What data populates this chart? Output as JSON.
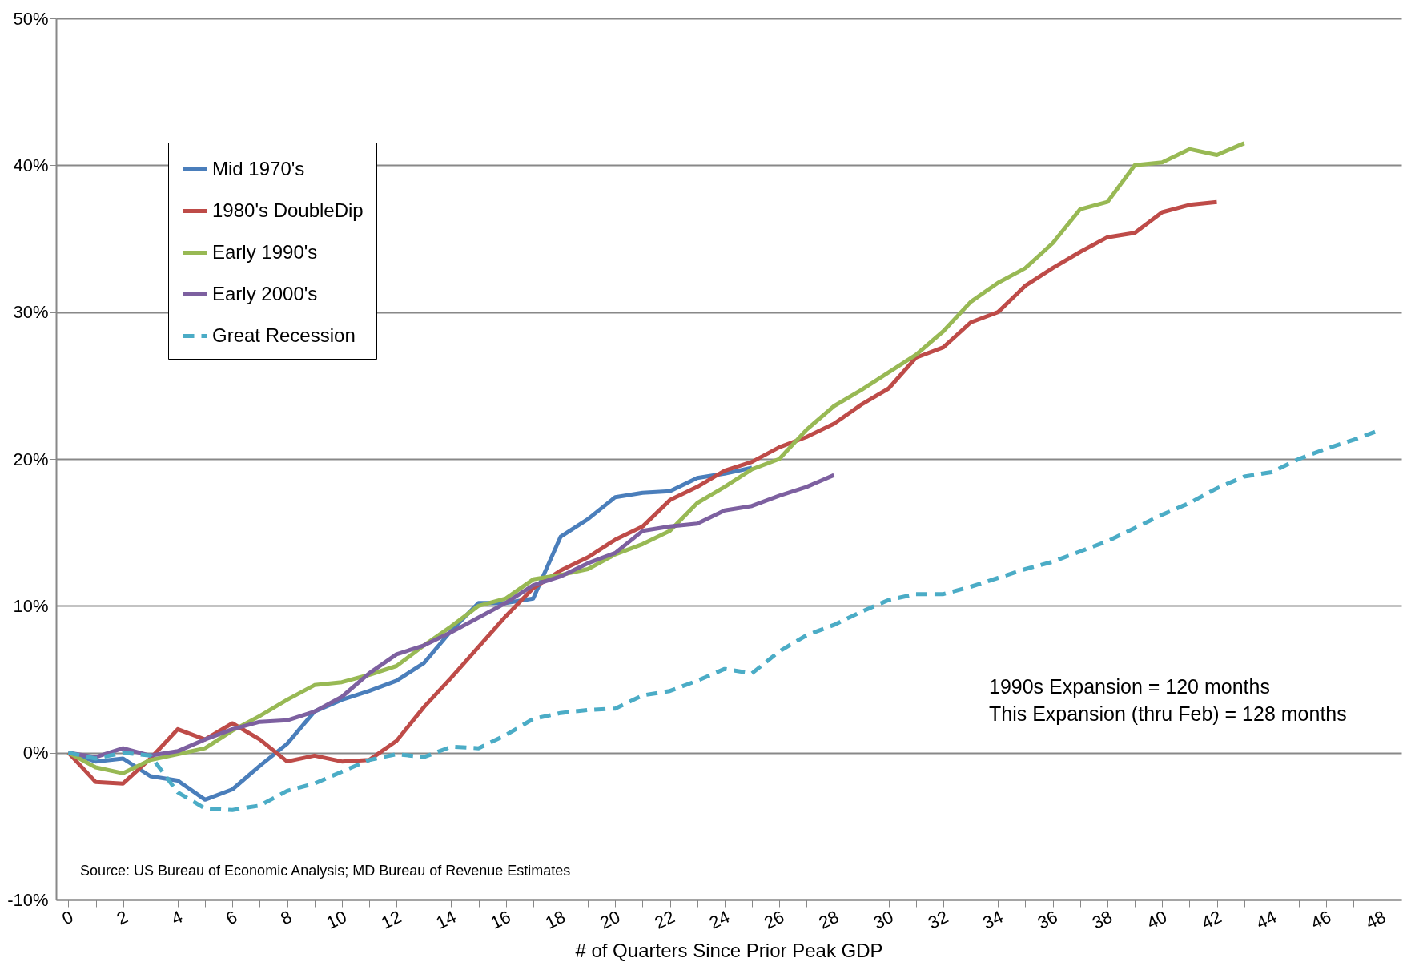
{
  "chart_data": {
    "type": "line",
    "xlabel": "# of Quarters Since Prior Peak GDP",
    "xlim": [
      -0.45,
      48.75
    ],
    "xticks": [
      0,
      {
        "value": 1,
        "label": null
      },
      2,
      {
        "value": 3,
        "label": null
      },
      4,
      {
        "value": 5,
        "label": null
      },
      6,
      {
        "value": 7,
        "label": null
      },
      8,
      {
        "value": 9,
        "label": null
      },
      10,
      {
        "value": 11,
        "label": null
      },
      12,
      {
        "value": 13,
        "label": null
      },
      14,
      {
        "value": 15,
        "label": null
      },
      16,
      {
        "value": 17,
        "label": null
      },
      18,
      {
        "value": 19,
        "label": null
      },
      20,
      {
        "value": 21,
        "label": null
      },
      22,
      {
        "value": 23,
        "label": null
      },
      24,
      {
        "value": 25,
        "label": null
      },
      26,
      {
        "value": 27,
        "label": null
      },
      28,
      {
        "value": 29,
        "label": null
      },
      30,
      {
        "value": 31,
        "label": null
      },
      32,
      {
        "value": 33,
        "label": null
      },
      34,
      {
        "value": 35,
        "label": null
      },
      36,
      {
        "value": 37,
        "label": null
      },
      38,
      {
        "value": 39,
        "label": null
      },
      40,
      {
        "value": 41,
        "label": null
      },
      42,
      {
        "value": 43,
        "label": null
      },
      44,
      {
        "value": 45,
        "label": null
      },
      46,
      {
        "value": 47,
        "label": null
      },
      48
    ],
    "ylim": [
      -10,
      50
    ],
    "yticks": [
      {
        "value": -10,
        "label": "-10%"
      },
      {
        "value": 0,
        "label": "0%"
      },
      {
        "value": 10,
        "label": "10%"
      },
      {
        "value": 20,
        "label": "20%"
      },
      {
        "value": 30,
        "label": "30%"
      },
      {
        "value": 40,
        "label": "40%"
      },
      {
        "value": 50,
        "label": "50%"
      }
    ],
    "grid": "y",
    "legend": "top left",
    "annotations": [
      "1990s Expansion = 120 months",
      "This Expansion (thru Feb) = 128 months",
      "Source: US Bureau of Economic Analysis; MD Bureau of Revenue Estimates"
    ],
    "series": [
      {
        "name": "Mid 1970's",
        "color": "#4a7ebb",
        "line_style": "solid",
        "x": [
          0,
          1,
          2,
          3,
          4,
          5,
          6,
          7,
          8,
          9,
          10,
          11,
          12,
          13,
          14,
          15,
          16,
          17,
          18,
          19,
          20,
          21,
          22,
          23,
          24,
          25
        ],
        "values": [
          0,
          -0.6,
          -0.4,
          -1.6,
          -1.9,
          -3.2,
          -2.5,
          -0.9,
          0.6,
          2.8,
          3.6,
          4.2,
          4.9,
          6.1,
          8.3,
          10.2,
          10.2,
          10.5,
          14.7,
          15.9,
          17.4,
          17.7,
          17.8,
          18.7,
          19.0,
          19.4
        ]
      },
      {
        "name": "1980's DoubleDip",
        "color": "#be4b48",
        "line_style": "solid",
        "x": [
          0,
          1,
          2,
          3,
          4,
          5,
          6,
          7,
          8,
          9,
          10,
          11,
          12,
          13,
          14,
          15,
          16,
          17,
          18,
          19,
          20,
          21,
          22,
          23,
          24,
          25,
          26,
          27,
          28,
          29,
          30,
          31,
          32,
          33,
          34,
          35,
          36,
          37,
          38,
          39,
          40,
          41,
          42
        ],
        "values": [
          0,
          -2.0,
          -2.1,
          -0.4,
          1.6,
          0.9,
          2.0,
          0.9,
          -0.6,
          -0.2,
          -0.6,
          -0.5,
          0.8,
          3.1,
          5.1,
          7.2,
          9.3,
          11.2,
          12.4,
          13.3,
          14.5,
          15.4,
          17.2,
          18.1,
          19.2,
          19.8,
          20.8,
          21.5,
          22.4,
          23.7,
          24.8,
          26.9,
          27.6,
          29.3,
          30.0,
          31.8,
          33.0,
          34.1,
          35.1,
          35.4,
          36.8,
          37.3,
          37.5
        ]
      },
      {
        "name": "Early 1990's",
        "color": "#98b954",
        "line_style": "solid",
        "x": [
          0,
          1,
          2,
          3,
          4,
          5,
          6,
          7,
          8,
          9,
          10,
          11,
          12,
          13,
          14,
          15,
          16,
          17,
          18,
          19,
          20,
          21,
          22,
          23,
          24,
          25,
          26,
          27,
          28,
          29,
          30,
          31,
          32,
          33,
          34,
          35,
          36,
          37,
          38,
          39,
          40,
          41,
          42,
          43
        ],
        "values": [
          0,
          -1.0,
          -1.4,
          -0.5,
          -0.1,
          0.3,
          1.5,
          2.5,
          3.6,
          4.6,
          4.8,
          5.3,
          5.9,
          7.3,
          8.6,
          10.0,
          10.5,
          11.8,
          12.1,
          12.5,
          13.5,
          14.2,
          15.1,
          17.0,
          18.1,
          19.3,
          20.0,
          22.0,
          23.6,
          24.7,
          25.9,
          27.1,
          28.7,
          30.7,
          32.0,
          33.0,
          34.7,
          37.0,
          37.5,
          40.0,
          40.2,
          41.1,
          40.7,
          41.5
        ]
      },
      {
        "name": "Early 2000's",
        "color": "#7d60a0",
        "line_style": "solid",
        "x": [
          0,
          1,
          2,
          3,
          4,
          5,
          6,
          7,
          8,
          9,
          10,
          11,
          12,
          13,
          14,
          15,
          16,
          17,
          18,
          19,
          20,
          21,
          22,
          23,
          24,
          25,
          26,
          27,
          28
        ],
        "values": [
          0,
          -0.3,
          0.3,
          -0.2,
          0.1,
          0.9,
          1.6,
          2.1,
          2.2,
          2.8,
          3.8,
          5.4,
          6.7,
          7.3,
          8.2,
          9.2,
          10.2,
          11.4,
          12.0,
          12.9,
          13.6,
          15.1,
          15.4,
          15.6,
          16.5,
          16.8,
          17.5,
          18.1,
          18.9
        ]
      },
      {
        "name": "Great Recession",
        "color": "#4bacc6",
        "line_style": "dashed",
        "x": [
          0,
          1,
          2,
          3,
          4,
          5,
          6,
          7,
          8,
          9,
          10,
          11,
          12,
          13,
          14,
          15,
          16,
          17,
          18,
          19,
          20,
          21,
          22,
          23,
          24,
          25,
          26,
          27,
          28,
          29,
          30,
          31,
          32,
          33,
          34,
          35,
          36,
          37,
          38,
          39,
          40,
          41,
          42,
          43,
          44,
          45,
          46,
          47,
          48
        ],
        "values": [
          0,
          -0.4,
          0.0,
          -0.2,
          -2.7,
          -3.8,
          -3.9,
          -3.6,
          -2.6,
          -2.1,
          -1.3,
          -0.5,
          -0.1,
          -0.3,
          0.4,
          0.3,
          1.2,
          2.3,
          2.7,
          2.9,
          3.0,
          3.9,
          4.2,
          4.9,
          5.7,
          5.4,
          6.9,
          8.0,
          8.7,
          9.6,
          10.4,
          10.8,
          10.8,
          11.3,
          11.9,
          12.5,
          13.0,
          13.7,
          14.4,
          15.3,
          16.2,
          17.0,
          18.0,
          18.8,
          19.1,
          20.0,
          20.7,
          21.3,
          22.0
        ]
      }
    ]
  }
}
